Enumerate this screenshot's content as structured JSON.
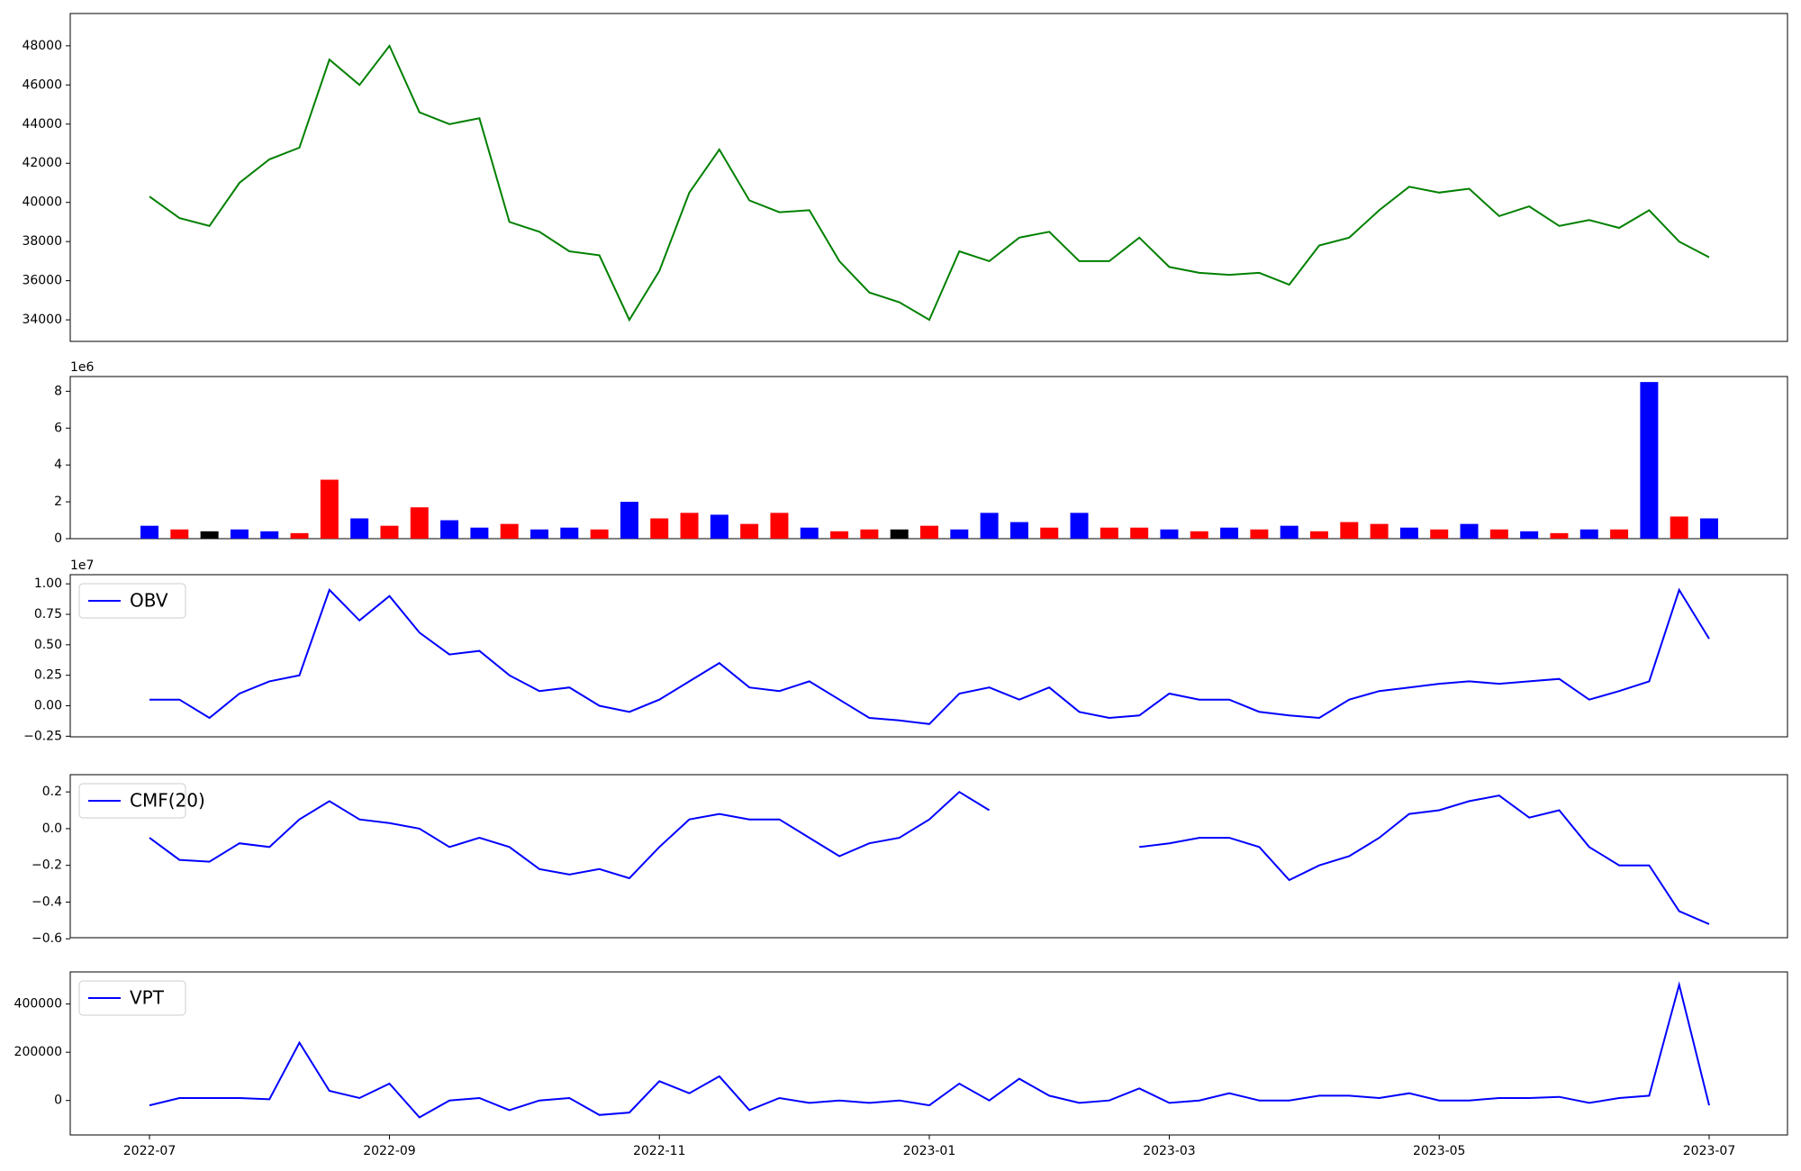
{
  "chart_data": [
    {
      "type": "line",
      "series": [
        {
          "color": "green",
          "values": [
            40300,
            39200,
            38800,
            41000,
            42200,
            42800,
            47300,
            46000,
            48000,
            44600,
            44000,
            44300,
            39000,
            38500,
            37500,
            37300,
            34000,
            36500,
            40500,
            42700,
            40100,
            39500,
            39600,
            37000,
            35400,
            34900,
            34000,
            37500,
            37000,
            38200,
            38500,
            37000,
            37000,
            38200,
            36700,
            36400,
            36300,
            36400,
            35800,
            37800,
            38200,
            39600,
            40800,
            40500,
            40700,
            39300,
            39800,
            38800,
            39100,
            38700,
            39600,
            38000,
            37200
          ]
        }
      ],
      "ylim": [
        32900,
        49650
      ],
      "yticks": [
        34000,
        36000,
        38000,
        40000,
        42000,
        44000,
        46000,
        48000
      ]
    },
    {
      "type": "bar",
      "axis_multiplier": "1e6",
      "values": [
        0.7,
        0.5,
        0.4,
        0.5,
        0.4,
        0.3,
        3.2,
        1.1,
        0.7,
        1.7,
        1.0,
        0.6,
        0.8,
        0.5,
        0.6,
        0.5,
        2.0,
        1.1,
        1.4,
        1.3,
        0.8,
        1.4,
        0.6,
        0.4,
        0.5,
        0.5,
        0.7,
        0.5,
        1.4,
        0.9,
        0.6,
        1.4,
        0.6,
        0.6,
        0.5,
        0.4,
        0.6,
        0.5,
        0.7,
        0.4,
        0.9,
        0.8,
        0.6,
        0.5,
        0.8,
        0.5,
        0.4,
        0.3,
        0.5,
        0.5,
        8.5,
        1.2,
        1.1
      ],
      "colors": [
        "blue",
        "red",
        "black",
        "blue",
        "blue",
        "red",
        "red",
        "blue",
        "red",
        "red",
        "blue",
        "blue",
        "red",
        "blue",
        "blue",
        "red",
        "blue",
        "red",
        "red",
        "blue",
        "red",
        "red",
        "blue",
        "red",
        "red",
        "black",
        "red",
        "blue",
        "blue",
        "blue",
        "red",
        "blue",
        "red",
        "red",
        "blue",
        "red",
        "blue",
        "red",
        "blue",
        "red",
        "red",
        "red",
        "blue",
        "red",
        "blue",
        "red",
        "blue",
        "red",
        "blue",
        "red",
        "blue",
        "red",
        "blue"
      ],
      "ylim": [
        0,
        8.8
      ],
      "yticks": [
        0,
        2,
        4,
        6,
        8
      ]
    },
    {
      "type": "line",
      "axis_multiplier": "1e7",
      "legend": "upper left",
      "series": [
        {
          "name": "OBV",
          "color": "blue",
          "values": [
            0.05,
            0.05,
            -0.1,
            0.1,
            0.2,
            0.25,
            0.95,
            0.7,
            0.9,
            0.6,
            0.42,
            0.45,
            0.25,
            0.12,
            0.15,
            0.0,
            -0.05,
            0.05,
            0.2,
            0.35,
            0.15,
            0.12,
            0.2,
            0.05,
            -0.1,
            -0.12,
            -0.15,
            0.1,
            0.15,
            0.05,
            0.15,
            -0.05,
            -0.1,
            -0.08,
            0.1,
            0.05,
            0.05,
            -0.05,
            -0.08,
            -0.1,
            0.05,
            0.12,
            0.15,
            0.18,
            0.2,
            0.18,
            0.2,
            0.22,
            0.05,
            0.12,
            0.2,
            0.95,
            0.55
          ]
        }
      ],
      "ylim": [
        -0.255,
        1.075
      ],
      "yticks": [
        {
          "value": -0.25,
          "label": "−0.25"
        },
        {
          "value": 0,
          "label": "0.00"
        },
        0.25,
        {
          "value": 0.5,
          "label": "0.50"
        },
        0.75,
        {
          "value": 1,
          "label": "1.00"
        }
      ]
    },
    {
      "type": "line",
      "legend": "upper left",
      "series": [
        {
          "name": "CMF(20)",
          "color": "blue",
          "values": [
            -0.05,
            -0.17,
            -0.18,
            -0.08,
            -0.1,
            0.05,
            0.15,
            0.05,
            0.03,
            0.0,
            -0.1,
            -0.05,
            -0.1,
            -0.22,
            -0.25,
            -0.22,
            -0.27,
            -0.1,
            0.05,
            0.08,
            0.05,
            0.05,
            -0.05,
            -0.15,
            -0.08,
            -0.05,
            0.05,
            0.2,
            0.1,
            null,
            null,
            null,
            null,
            -0.1,
            -0.08,
            -0.05,
            -0.05,
            -0.1,
            -0.28,
            -0.2,
            -0.15,
            -0.05,
            0.08,
            0.1,
            0.15,
            0.18,
            0.06,
            0.1,
            -0.1,
            -0.2,
            -0.2,
            -0.45,
            -0.52
          ]
        }
      ],
      "ylim": [
        -0.594,
        0.294
      ],
      "yticks": [
        {
          "value": -0.6,
          "label": "−0.6"
        },
        {
          "value": -0.4,
          "label": "−0.4"
        },
        {
          "value": -0.2,
          "label": "−0.2"
        },
        {
          "value": 0,
          "label": "0.0"
        },
        0.2
      ]
    },
    {
      "type": "line",
      "legend": "upper left",
      "series": [
        {
          "name": "VPT",
          "color": "blue",
          "values": [
            -20000,
            10000,
            10000,
            10000,
            5000,
            240000,
            40000,
            10000,
            70000,
            -70000,
            0,
            10000,
            -40000,
            0,
            10000,
            -60000,
            -50000,
            80000,
            30000,
            100000,
            -40000,
            10000,
            -10000,
            0,
            -10000,
            0,
            -20000,
            70000,
            0,
            90000,
            20000,
            -10000,
            0,
            50000,
            -10000,
            0,
            30000,
            0,
            0,
            20000,
            20000,
            10000,
            30000,
            0,
            0,
            10000,
            10000,
            15000,
            -10000,
            10000,
            20000,
            480000,
            -20000
          ]
        }
      ],
      "ylim": [
        -143000,
        533000
      ],
      "yticks": [
        0,
        200000,
        400000
      ],
      "categories": [
        "2022-07",
        null,
        null,
        null,
        null,
        null,
        null,
        null,
        "2022-09",
        null,
        null,
        null,
        null,
        null,
        null,
        null,
        null,
        "2022-11",
        null,
        null,
        null,
        null,
        null,
        null,
        null,
        null,
        "2023-01",
        null,
        null,
        null,
        null,
        null,
        null,
        null,
        "2023-03",
        null,
        null,
        null,
        null,
        null,
        null,
        null,
        null,
        "2023-05",
        null,
        null,
        null,
        null,
        null,
        null,
        null,
        null,
        "2023-07"
      ]
    }
  ]
}
